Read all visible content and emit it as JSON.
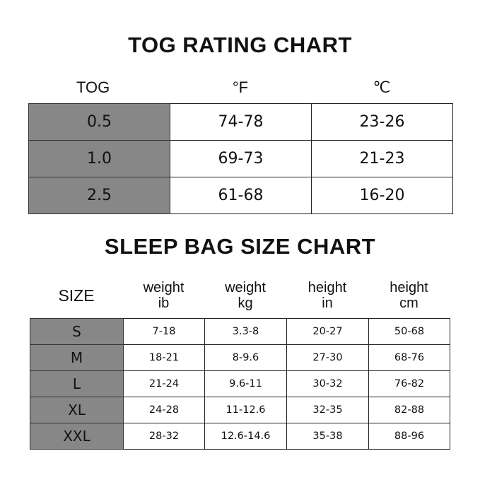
{
  "tog_chart": {
    "title": "TOG RATING CHART",
    "headers": [
      "TOG",
      "°F",
      "℃"
    ],
    "rows": [
      [
        "0.5",
        "74-78",
        "23-26"
      ],
      [
        "1.0",
        "69-73",
        "21-23"
      ],
      [
        "2.5",
        "61-68",
        "16-20"
      ]
    ]
  },
  "size_chart": {
    "title": "SLEEP BAG SIZE CHART",
    "headers": [
      {
        "line1": "SIZE",
        "line2": ""
      },
      {
        "line1": "weight",
        "line2": "ib"
      },
      {
        "line1": "weight",
        "line2": "kg"
      },
      {
        "line1": "height",
        "line2": "in"
      },
      {
        "line1": "height",
        "line2": "cm"
      }
    ],
    "rows": [
      [
        "S",
        "7-18",
        "3.3-8",
        "20-27",
        "50-68"
      ],
      [
        "M",
        "18-21",
        "8-9.6",
        "27-30",
        "68-76"
      ],
      [
        "L",
        "21-24",
        "9.6-11",
        "30-32",
        "76-82"
      ],
      [
        "XL",
        "24-28",
        "11-12.6",
        "32-35",
        "82-88"
      ],
      [
        "XXL",
        "28-32",
        "12.6-14.6",
        "35-38",
        "88-96"
      ]
    ]
  },
  "colors": {
    "key_cell": "#878787",
    "border": "#222222"
  }
}
